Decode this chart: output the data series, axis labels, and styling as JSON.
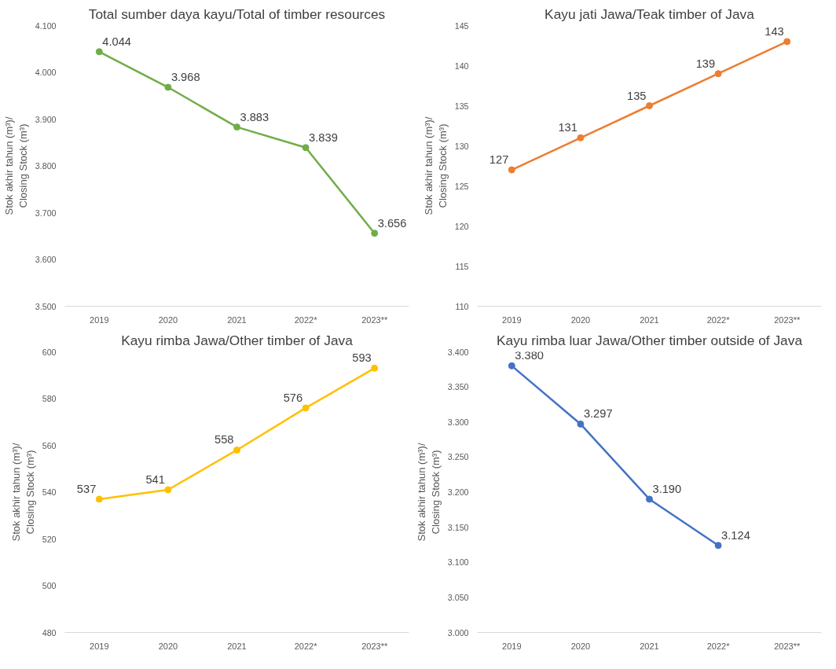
{
  "chart_data": [
    {
      "type": "line",
      "title": "Total sumber daya kayu/Total of timber resources",
      "ylabel": "Stok akhir tahun (m³)/\nClosing Stock (m³)",
      "categories": [
        "2019",
        "2020",
        "2021",
        "2022*",
        "2023**"
      ],
      "series": [
        {
          "color": "#70ad47",
          "values": [
            4044,
            3968,
            3883,
            3839,
            3656
          ],
          "value_labels": [
            "4.044",
            "3.968",
            "3.883",
            "3.839",
            "3.656"
          ]
        }
      ],
      "ylim": [
        3500,
        4100
      ],
      "yticks": [
        {
          "value": 3500,
          "label": "3.500"
        },
        {
          "value": 3600,
          "label": "3.600"
        },
        {
          "value": 3700,
          "label": "3.700"
        },
        {
          "value": 3800,
          "label": "3.800"
        },
        {
          "value": 3900,
          "label": "3.900"
        },
        {
          "value": 4000,
          "label": "4.000"
        },
        {
          "value": 4100,
          "label": "4.100"
        }
      ],
      "marker": "circle",
      "grid": false
    },
    {
      "type": "line",
      "title": "Kayu jati Jawa/Teak timber of Java",
      "ylabel": "Stok akhir tahun (m³)/\nClosing Stock (m³)",
      "categories": [
        "2019",
        "2020",
        "2021",
        "2022*",
        "2023**"
      ],
      "series": [
        {
          "color": "#ed7d31",
          "values": [
            127,
            131,
            135,
            139,
            143
          ],
          "value_labels": [
            "127",
            "131",
            "135",
            "139",
            "143"
          ]
        }
      ],
      "ylim": [
        110,
        145
      ],
      "yticks": [
        110,
        115,
        120,
        125,
        130,
        135,
        140,
        145
      ],
      "marker": "circle",
      "grid": false
    },
    {
      "type": "line",
      "title": "Kayu rimba Jawa/Other timber of Java",
      "ylabel": "Stok akhir tahun (m³)/\nClosing Stock (m³)",
      "categories": [
        "2019",
        "2020",
        "2021",
        "2022*",
        "2023**"
      ],
      "series": [
        {
          "color": "#ffc000",
          "values": [
            537,
            541,
            558,
            576,
            593
          ],
          "value_labels": [
            "537",
            "541",
            "558",
            "576",
            "593"
          ]
        }
      ],
      "ylim": [
        480,
        600
      ],
      "yticks": [
        480,
        500,
        520,
        540,
        560,
        580,
        600
      ],
      "marker": "circle",
      "grid": false
    },
    {
      "type": "line",
      "title": "Kayu rimba luar Jawa/Other timber outside of Java",
      "ylabel": "Stok akhir tahun (m³)/\nClosing Stock (m³)",
      "categories": [
        "2019",
        "2020",
        "2021",
        "2022*",
        "2023**"
      ],
      "series": [
        {
          "color": "#4472c4",
          "values": [
            3380,
            3297,
            3190,
            3124,
            null
          ],
          "value_labels": [
            "3.380",
            "3.297",
            "3.190",
            "3.124",
            null
          ]
        }
      ],
      "ylim": [
        3000,
        3400
      ],
      "yticks": [
        {
          "value": 3000,
          "label": "3.000"
        },
        {
          "value": 3050,
          "label": "3.050"
        },
        {
          "value": 3100,
          "label": "3.100"
        },
        {
          "value": 3150,
          "label": "3.150"
        },
        {
          "value": 3200,
          "label": "3.200"
        },
        {
          "value": 3250,
          "label": "3.250"
        },
        {
          "value": 3300,
          "label": "3.300"
        },
        {
          "value": 3350,
          "label": "3.350"
        },
        {
          "value": 3400,
          "label": "3.400"
        }
      ],
      "marker": "circle",
      "grid": false
    }
  ]
}
